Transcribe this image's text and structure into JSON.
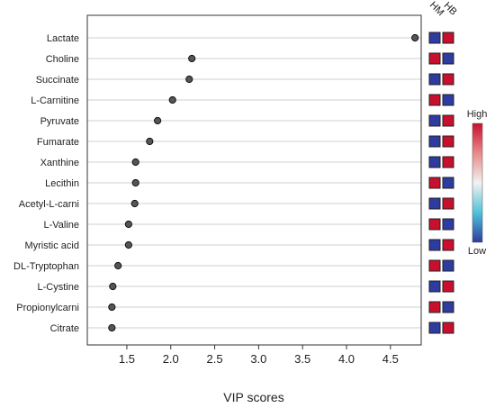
{
  "chart_data": {
    "type": "scatter",
    "xlabel": "VIP scores",
    "xlim": [
      1.05,
      4.85
    ],
    "xticks": [
      1.5,
      2.0,
      2.5,
      3.0,
      3.5,
      4.0,
      4.5
    ],
    "xtick_labels": [
      "1.5",
      "2.0",
      "2.5",
      "3.0",
      "3.5",
      "4.0",
      "4.5"
    ],
    "grid": "horizontal lines only",
    "categories": [
      "Lactate",
      "Choline",
      "Succinate",
      "L-Carnitine",
      "Pyruvate",
      "Fumarate",
      "Xanthine",
      "Lecithin",
      "Acetyl-L-carni",
      "L-Valine",
      "Myristic acid",
      "DL-Tryptophan",
      "L-Cystine",
      "Propionylcarni",
      "Citrate"
    ],
    "values": [
      4.78,
      2.24,
      2.21,
      2.02,
      1.85,
      1.76,
      1.6,
      1.6,
      1.59,
      1.52,
      1.52,
      1.4,
      1.34,
      1.33,
      1.33
    ],
    "heatmap_columns": [
      "HM",
      "HB"
    ],
    "heatmap_levels": [
      [
        "low",
        "high"
      ],
      [
        "high",
        "low"
      ],
      [
        "low",
        "high"
      ],
      [
        "high",
        "low"
      ],
      [
        "low",
        "high"
      ],
      [
        "low",
        "high"
      ],
      [
        "low",
        "high"
      ],
      [
        "high",
        "low"
      ],
      [
        "low",
        "high"
      ],
      [
        "high",
        "low"
      ],
      [
        "low",
        "high"
      ],
      [
        "high",
        "low"
      ],
      [
        "low",
        "high"
      ],
      [
        "high",
        "low"
      ],
      [
        "low",
        "high"
      ]
    ],
    "colorbar": {
      "high_label": "High",
      "low_label": "Low",
      "colors": [
        "#c8102e",
        "#f2f2f2",
        "#2e3b9f"
      ]
    },
    "colors": {
      "high": "#c8102e",
      "low": "#2e3b9f",
      "point": "#555555"
    }
  }
}
